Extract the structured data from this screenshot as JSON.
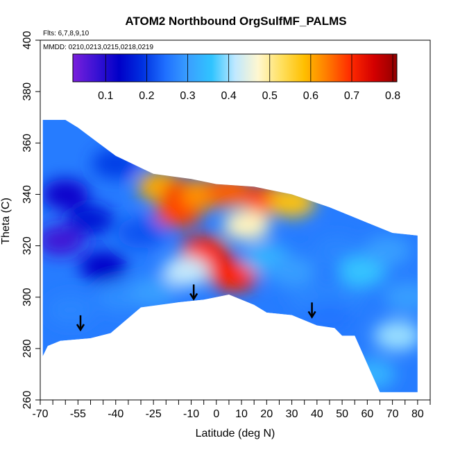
{
  "chart_data": {
    "type": "heatmap",
    "title": "ATOM2 Northbound OrgSulfMF_PALMS",
    "flights_label": "Flts: 6,7,8,9,10",
    "dates_label": "MMDD: 0210,0213,0215,0218,0219",
    "xlabel": "Latitude (deg N)",
    "ylabel": "Theta (C)",
    "xlim": [
      -70,
      85
    ],
    "ylim": [
      260,
      400
    ],
    "x_tick_labels": [
      -70,
      -55,
      -40,
      -25,
      -10,
      0,
      10,
      20,
      30,
      40,
      50,
      60,
      70,
      80
    ],
    "x_minor_ticks": [
      -65,
      -60,
      -50,
      -45,
      -35,
      -30,
      -20,
      -15,
      -5,
      5,
      15,
      25,
      35,
      45,
      55,
      65,
      75,
      85
    ],
    "y_ticks": [
      260,
      280,
      300,
      320,
      340,
      360,
      380,
      400
    ],
    "colorbar": {
      "min": 0.02,
      "max": 0.81,
      "tick_values": [
        0.1,
        0.2,
        0.3,
        0.4,
        0.5,
        0.6,
        0.7,
        0.8
      ],
      "tick_labels": [
        "0.1",
        "0.2",
        "0.3",
        "0.4",
        "0.5",
        "0.6",
        "0.7",
        "0.8"
      ],
      "colors": [
        "#7a1fdc",
        "#3a12d4",
        "#0000c8",
        "#0030e0",
        "#1f70ff",
        "#3aa0ff",
        "#30c4ff",
        "#bfe8ff",
        "#fff7d0",
        "#ffe060",
        "#ffbf00",
        "#ff7a00",
        "#ff2a00",
        "#d40000",
        "#900000"
      ]
    },
    "coverage_top": [
      [
        -69,
        369
      ],
      [
        -60,
        369
      ],
      [
        -55,
        366
      ],
      [
        -40,
        355
      ],
      [
        -25,
        348
      ],
      [
        -10,
        346
      ],
      [
        0,
        344
      ],
      [
        15,
        343
      ],
      [
        30,
        340
      ],
      [
        45,
        335
      ],
      [
        60,
        329
      ],
      [
        70,
        325
      ],
      [
        80,
        324
      ]
    ],
    "coverage_bottom": [
      [
        -69,
        277
      ],
      [
        -67,
        281
      ],
      [
        -62,
        283
      ],
      [
        -50,
        284
      ],
      [
        -42,
        286
      ],
      [
        -30,
        296
      ],
      [
        -15,
        298
      ],
      [
        -5,
        299
      ],
      [
        0,
        300
      ],
      [
        5,
        301
      ],
      [
        15,
        297
      ],
      [
        20,
        294
      ],
      [
        30,
        293
      ],
      [
        40,
        289
      ],
      [
        47,
        288
      ],
      [
        50,
        285
      ],
      [
        55,
        285
      ],
      [
        65,
        263
      ],
      [
        80,
        263
      ]
    ],
    "field_blobs": [
      {
        "lat": -60,
        "theta": 340,
        "value": 0.12
      },
      {
        "lat": -62,
        "theta": 322,
        "value": 0.07
      },
      {
        "lat": -50,
        "theta": 330,
        "value": 0.16
      },
      {
        "lat": -45,
        "theta": 312,
        "value": 0.13
      },
      {
        "lat": -58,
        "theta": 295,
        "value": 0.27
      },
      {
        "lat": -38,
        "theta": 300,
        "value": 0.28
      },
      {
        "lat": -40,
        "theta": 352,
        "value": 0.2
      },
      {
        "lat": -30,
        "theta": 325,
        "value": 0.22
      },
      {
        "lat": -22,
        "theta": 343,
        "value": 0.6
      },
      {
        "lat": -12,
        "theta": 340,
        "value": 0.72
      },
      {
        "lat": -15,
        "theta": 333,
        "value": 0.68
      },
      {
        "lat": -5,
        "theta": 340,
        "value": 0.62
      },
      {
        "lat": 5,
        "theta": 341,
        "value": 0.66
      },
      {
        "lat": 20,
        "theta": 338,
        "value": 0.68
      },
      {
        "lat": 30,
        "theta": 337,
        "value": 0.58
      },
      {
        "lat": 0,
        "theta": 312,
        "value": 0.75
      },
      {
        "lat": -5,
        "theta": 318,
        "value": 0.7
      },
      {
        "lat": 7,
        "theta": 308,
        "value": 0.7
      },
      {
        "lat": 12,
        "theta": 328,
        "value": 0.48
      },
      {
        "lat": -12,
        "theta": 310,
        "value": 0.42
      },
      {
        "lat": 20,
        "theta": 315,
        "value": 0.33
      },
      {
        "lat": 30,
        "theta": 310,
        "value": 0.3
      },
      {
        "lat": 38,
        "theta": 300,
        "value": 0.27
      },
      {
        "lat": 48,
        "theta": 318,
        "value": 0.27
      },
      {
        "lat": 50,
        "theta": 300,
        "value": 0.27
      },
      {
        "lat": 58,
        "theta": 310,
        "value": 0.36
      },
      {
        "lat": 68,
        "theta": 318,
        "value": 0.3
      },
      {
        "lat": 72,
        "theta": 285,
        "value": 0.4
      },
      {
        "lat": 76,
        "theta": 300,
        "value": 0.3
      },
      {
        "lat": 62,
        "theta": 270,
        "value": 0.33
      },
      {
        "lat": 45,
        "theta": 292,
        "value": 0.25
      },
      {
        "lat": -25,
        "theta": 302,
        "value": 0.3
      }
    ],
    "arrows": [
      {
        "lat": -54,
        "theta": 287
      },
      {
        "lat": -9,
        "theta": 299
      },
      {
        "lat": 38,
        "theta": 292
      }
    ]
  }
}
